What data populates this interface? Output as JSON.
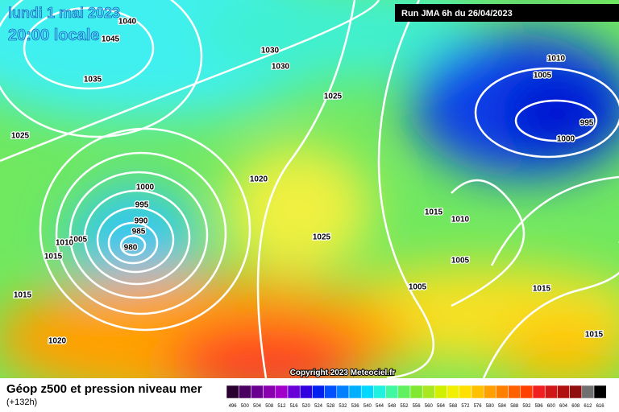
{
  "header": {
    "title_line1": "lundi 1 mai 2023",
    "title_line2": "20:00 locale",
    "run": "Run JMA 6h du 26/04/2023",
    "copyright": "Copyright 2023 Meteociel.fr"
  },
  "footer": {
    "title": "Géop z500 et pression niveau mer",
    "subtitle": "(+132h)"
  },
  "legend": {
    "labels": [
      496,
      500,
      504,
      508,
      512,
      516,
      520,
      524,
      528,
      532,
      536,
      540,
      544,
      548,
      552,
      556,
      560,
      564,
      568,
      572,
      576,
      580,
      584,
      588,
      592,
      596,
      600,
      604,
      608,
      612,
      616
    ],
    "colors": [
      "#2a0030",
      "#4a0060",
      "#6a0090",
      "#8a00b0",
      "#a000c8",
      "#6a00d8",
      "#3000e0",
      "#0020f0",
      "#0050ff",
      "#0080ff",
      "#00b0ff",
      "#00d8ff",
      "#20f0e0",
      "#40f8a0",
      "#60f060",
      "#80e830",
      "#a8e820",
      "#d0f000",
      "#f0f000",
      "#ffe000",
      "#ffc000",
      "#ffa000",
      "#ff8000",
      "#ff6000",
      "#ff4000",
      "#f02020",
      "#d01818",
      "#b01010",
      "#901010",
      "#707070",
      "#000000"
    ]
  },
  "isobar_labels": [
    1040,
    1045,
    1035,
    1030,
    1030,
    1025,
    1025,
    1020,
    1000,
    995,
    990,
    985,
    980,
    1005,
    1010,
    1015,
    1015,
    1020,
    1025,
    1010,
    1005,
    995,
    1000,
    1015,
    1010,
    1005,
    1005,
    1015,
    1015
  ]
}
